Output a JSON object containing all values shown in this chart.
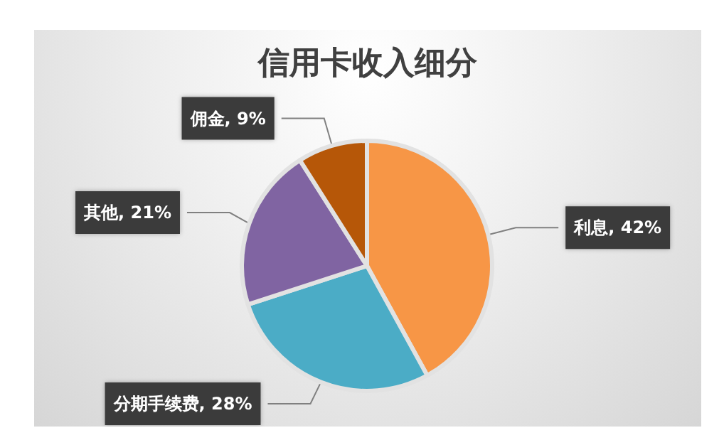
{
  "chart_data": {
    "type": "pie",
    "title": "信用卡收入细分",
    "categories": [
      "利息",
      "分期手续费",
      "其他",
      "佣金"
    ],
    "values": [
      42,
      28,
      21,
      9
    ],
    "value_labels": [
      "42%",
      "28%",
      "21%",
      "9%"
    ],
    "colors": [
      "#f79646",
      "#4bacc6",
      "#8064a2",
      "#b65708"
    ],
    "legend": false
  }
}
